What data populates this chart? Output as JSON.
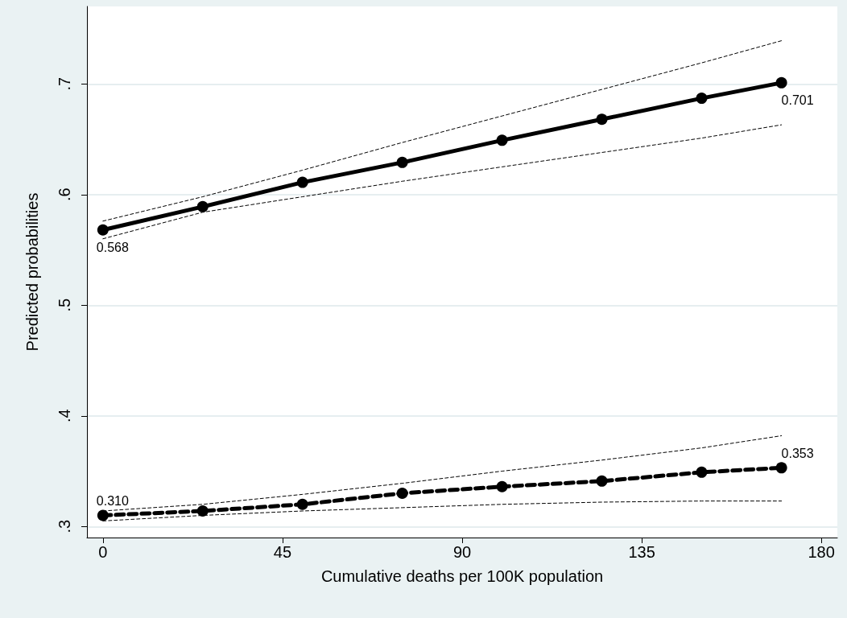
{
  "chart_data": {
    "type": "line",
    "xlabel": "Cumulative deaths per 100K population",
    "ylabel": "Predicted probabilities",
    "x": [
      0,
      25,
      50,
      75,
      100,
      125,
      150,
      170
    ],
    "series": [
      {
        "color": "#000000",
        "line_style": "solid",
        "marker": "circle",
        "values": [
          0.568,
          0.589,
          0.611,
          0.629,
          0.649,
          0.668,
          0.687,
          0.701
        ],
        "value_labels": [
          "0.568",
          null,
          null,
          null,
          null,
          null,
          null,
          "0.701"
        ]
      },
      {
        "color": "#000000",
        "line_style": "dotted",
        "marker": "none",
        "values": [
          0.56,
          0.584,
          0.598,
          0.612,
          0.625,
          0.638,
          0.651,
          0.663
        ]
      },
      {
        "color": "#000000",
        "line_style": "dotted",
        "marker": "none",
        "values": [
          0.576,
          0.598,
          0.622,
          0.647,
          0.671,
          0.695,
          0.719,
          0.739
        ]
      },
      {
        "color": "#000000",
        "line_style": "dashed",
        "marker": "circle",
        "values": [
          0.31,
          0.314,
          0.32,
          0.33,
          0.336,
          0.341,
          0.349,
          0.353
        ],
        "value_labels": [
          "0.310",
          null,
          null,
          null,
          null,
          null,
          null,
          "0.353"
        ]
      },
      {
        "color": "#000000",
        "line_style": "dotted",
        "marker": "none",
        "values": [
          0.305,
          0.31,
          0.314,
          0.317,
          0.32,
          0.322,
          0.323,
          0.323
        ]
      },
      {
        "color": "#000000",
        "line_style": "dotted",
        "marker": "none",
        "values": [
          0.314,
          0.32,
          0.329,
          0.339,
          0.35,
          0.36,
          0.371,
          0.382
        ]
      }
    ],
    "xlim": [
      -4,
      184
    ],
    "xticks": [
      0,
      45,
      90,
      135,
      180
    ],
    "ylim": [
      0.29,
      0.77
    ],
    "yticks": [
      {
        "value": 0.3,
        "label": ".3"
      },
      {
        "value": 0.4,
        "label": ".4"
      },
      {
        "value": 0.5,
        "label": ".5"
      },
      {
        "value": 0.6,
        "label": ".6"
      },
      {
        "value": 0.7,
        "label": ".7"
      }
    ],
    "grid": "y"
  }
}
